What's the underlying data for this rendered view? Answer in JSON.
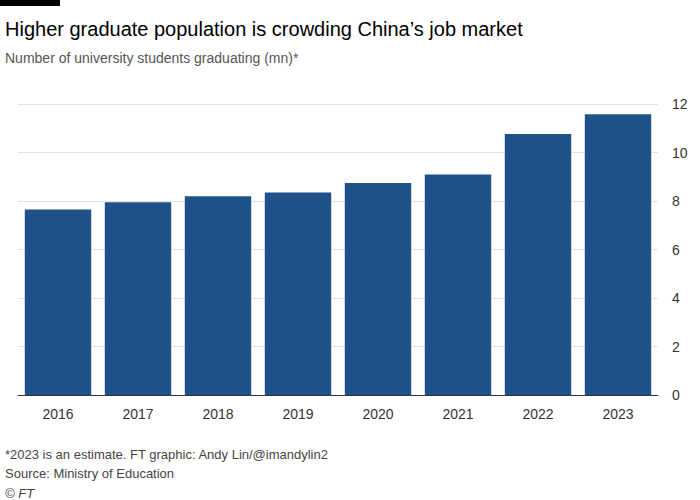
{
  "chart_data": {
    "type": "bar",
    "title": "Higher graduate population is crowding China’s job market",
    "subtitle": "Number of university students graduating (mn)*",
    "categories": [
      "2016",
      "2017",
      "2018",
      "2019",
      "2020",
      "2021",
      "2022",
      "2023"
    ],
    "values": [
      7.65,
      7.95,
      8.2,
      8.35,
      8.74,
      9.09,
      10.76,
      11.58
    ],
    "color": "#1f528a",
    "ylim": [
      0,
      12
    ],
    "yticks": [
      0,
      2,
      4,
      6,
      8,
      10,
      12
    ],
    "grid": true,
    "footnote": "*2023 is an estimate. FT graphic: Andy Lin/@imandylin2",
    "source": "Source: Ministry of Education",
    "copyright": "© FT"
  }
}
